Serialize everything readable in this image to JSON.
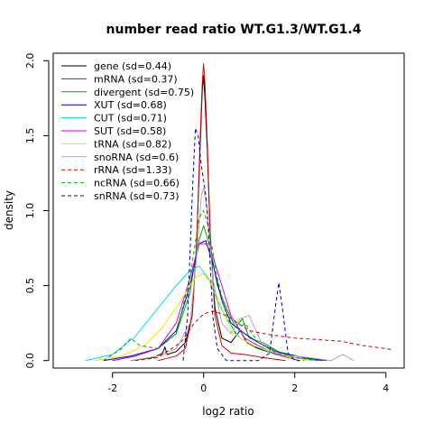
{
  "chart_data": {
    "type": "line",
    "title": "number read ratio WT.G1.3/WT.G1.4",
    "xlabel": "log2 ratio",
    "ylabel": "density",
    "xlim": [
      -3.3,
      4.4
    ],
    "ylim": [
      -0.05,
      2.05
    ],
    "x_ticks": [
      -2,
      0,
      2,
      4
    ],
    "y_ticks": [
      0.0,
      0.5,
      1.0,
      1.5,
      2.0
    ],
    "x_tick_labels": [
      "-2",
      "0",
      "2",
      "4"
    ],
    "y_tick_labels": [
      "0.0",
      "0.5",
      "1.0",
      "1.5",
      "2.0"
    ],
    "legend_position": "top-left",
    "series": [
      {
        "name": "gene (sd=0.44)",
        "color": "#000000",
        "dash": "solid",
        "x": [
          -1.6,
          -1.1,
          -0.9,
          -0.85,
          -0.8,
          -0.6,
          -0.4,
          -0.25,
          -0.15,
          -0.08,
          -0.03,
          0.0,
          0.03,
          0.08,
          0.15,
          0.25,
          0.4,
          0.6,
          0.8,
          0.95,
          1.2,
          1.6,
          2.0,
          2.6
        ],
        "y": [
          0.0,
          0.02,
          0.05,
          0.09,
          0.04,
          0.06,
          0.12,
          0.3,
          0.8,
          1.4,
          1.8,
          1.9,
          1.75,
          1.4,
          0.8,
          0.35,
          0.15,
          0.12,
          0.2,
          0.12,
          0.08,
          0.04,
          0.02,
          0.0
        ]
      },
      {
        "name": "mRNA (sd=0.37)",
        "color": "#dd0000",
        "dash": "solid",
        "x": [
          -1.0,
          -0.6,
          -0.4,
          -0.25,
          -0.15,
          -0.08,
          -0.03,
          0.0,
          0.03,
          0.08,
          0.15,
          0.25,
          0.4,
          0.6,
          0.9,
          1.3,
          1.8
        ],
        "y": [
          0.0,
          0.03,
          0.08,
          0.3,
          0.8,
          1.45,
          1.85,
          1.98,
          1.85,
          1.45,
          0.8,
          0.3,
          0.1,
          0.05,
          0.04,
          0.02,
          0.0
        ]
      },
      {
        "name": "divergent (sd=0.75)",
        "color": "#00aa00",
        "dash": "solid",
        "x": [
          -2.0,
          -1.5,
          -1.0,
          -0.6,
          -0.3,
          -0.15,
          0.0,
          0.15,
          0.3,
          0.5,
          0.7,
          0.85,
          1.0,
          1.3,
          1.7,
          2.2,
          2.6
        ],
        "y": [
          0.0,
          0.03,
          0.08,
          0.18,
          0.45,
          0.75,
          0.9,
          0.75,
          0.5,
          0.35,
          0.22,
          0.28,
          0.15,
          0.12,
          0.05,
          0.02,
          0.0
        ]
      },
      {
        "name": "XUT (sd=0.68)",
        "color": "#0000cc",
        "dash": "solid",
        "x": [
          -2.2,
          -1.6,
          -1.0,
          -0.6,
          -0.3,
          -0.1,
          0.05,
          0.2,
          0.4,
          0.6,
          0.9,
          1.2,
          1.6,
          2.2,
          2.7
        ],
        "y": [
          0.0,
          0.03,
          0.08,
          0.2,
          0.5,
          0.78,
          0.8,
          0.65,
          0.4,
          0.25,
          0.18,
          0.12,
          0.06,
          0.02,
          0.0
        ]
      },
      {
        "name": "CUT (sd=0.71)",
        "color": "#00dddd",
        "dash": "solid",
        "x": [
          -2.6,
          -2.0,
          -1.5,
          -1.0,
          -0.6,
          -0.3,
          -0.1,
          0.1,
          0.3,
          0.5,
          0.8,
          1.1,
          1.5,
          2.0,
          2.5
        ],
        "y": [
          0.0,
          0.04,
          0.16,
          0.35,
          0.5,
          0.6,
          0.63,
          0.55,
          0.4,
          0.28,
          0.15,
          0.1,
          0.05,
          0.02,
          0.0
        ]
      },
      {
        "name": "SUT (sd=0.58)",
        "color": "#dd00dd",
        "dash": "solid",
        "x": [
          -2.0,
          -1.5,
          -1.0,
          -0.6,
          -0.3,
          -0.1,
          0.05,
          0.2,
          0.4,
          0.6,
          0.9,
          1.2,
          1.6,
          2.1
        ],
        "y": [
          0.0,
          0.03,
          0.08,
          0.25,
          0.55,
          0.78,
          0.78,
          0.7,
          0.5,
          0.3,
          0.15,
          0.1,
          0.04,
          0.0
        ]
      },
      {
        "name": "tRNA (sd=0.82)",
        "color": "#ffdd00",
        "dash": "solid",
        "x": [
          -2.4,
          -1.8,
          -1.3,
          -0.9,
          -0.5,
          -0.2,
          0.0,
          0.2,
          0.4,
          0.6,
          0.8,
          1.1,
          1.4,
          1.9,
          2.4
        ],
        "y": [
          0.0,
          0.03,
          0.1,
          0.22,
          0.4,
          0.55,
          0.58,
          0.5,
          0.35,
          0.2,
          0.15,
          0.1,
          0.07,
          0.02,
          0.0
        ]
      },
      {
        "name": "snoRNA (sd=0.6)",
        "color": "#aaaaaa",
        "dash": "solid",
        "x": [
          -1.6,
          -1.0,
          -0.6,
          -0.3,
          -0.15,
          -0.05,
          0.0,
          0.08,
          0.2,
          0.4,
          0.6,
          0.8,
          1.0,
          1.3,
          1.7,
          2.3,
          2.8,
          3.05,
          3.3
        ],
        "y": [
          0.0,
          0.03,
          0.08,
          0.25,
          0.7,
          1.1,
          1.15,
          1.0,
          0.55,
          0.25,
          0.18,
          0.28,
          0.3,
          0.1,
          0.04,
          0.02,
          0.0,
          0.04,
          0.0
        ]
      },
      {
        "name": "rRNA (sd=1.33)",
        "color": "#dd0000",
        "dash": "dashed",
        "x": [
          -1.5,
          -1.0,
          -0.5,
          -0.2,
          0.0,
          0.2,
          0.5,
          1.0,
          1.5,
          2.0,
          2.5,
          3.0,
          3.5,
          4.0,
          4.15
        ],
        "y": [
          0.0,
          0.02,
          0.12,
          0.25,
          0.31,
          0.33,
          0.3,
          0.2,
          0.17,
          0.15,
          0.14,
          0.13,
          0.1,
          0.08,
          0.07
        ]
      },
      {
        "name": "ncRNA (sd=0.66)",
        "color": "#00aa00",
        "dash": "dashed",
        "x": [
          -2.2,
          -1.8,
          -1.6,
          -1.4,
          -1.0,
          -0.6,
          -0.3,
          -0.1,
          0.0,
          0.1,
          0.3,
          0.5,
          0.7,
          0.9,
          1.2,
          1.6,
          2.0,
          2.5
        ],
        "y": [
          0.0,
          0.08,
          0.15,
          0.1,
          0.08,
          0.18,
          0.55,
          0.95,
          1.0,
          0.9,
          0.55,
          0.3,
          0.18,
          0.25,
          0.12,
          0.05,
          0.02,
          0.0
        ]
      },
      {
        "name": "snRNA (sd=0.73)",
        "color": "#0000cc",
        "dash": "dashed",
        "x": [
          -0.45,
          -0.35,
          -0.25,
          -0.18,
          -0.12,
          -0.05,
          0.0,
          0.05,
          0.1,
          0.15,
          0.2,
          0.3,
          0.5,
          0.8,
          1.2,
          1.45,
          1.55,
          1.65,
          1.75,
          1.85,
          2.0,
          2.2
        ],
        "y": [
          0.0,
          0.3,
          1.1,
          1.55,
          1.5,
          1.3,
          1.2,
          1.1,
          0.9,
          0.6,
          0.3,
          0.08,
          0.0,
          0.0,
          0.0,
          0.05,
          0.3,
          0.52,
          0.3,
          0.05,
          0.0,
          0.0
        ]
      }
    ]
  }
}
